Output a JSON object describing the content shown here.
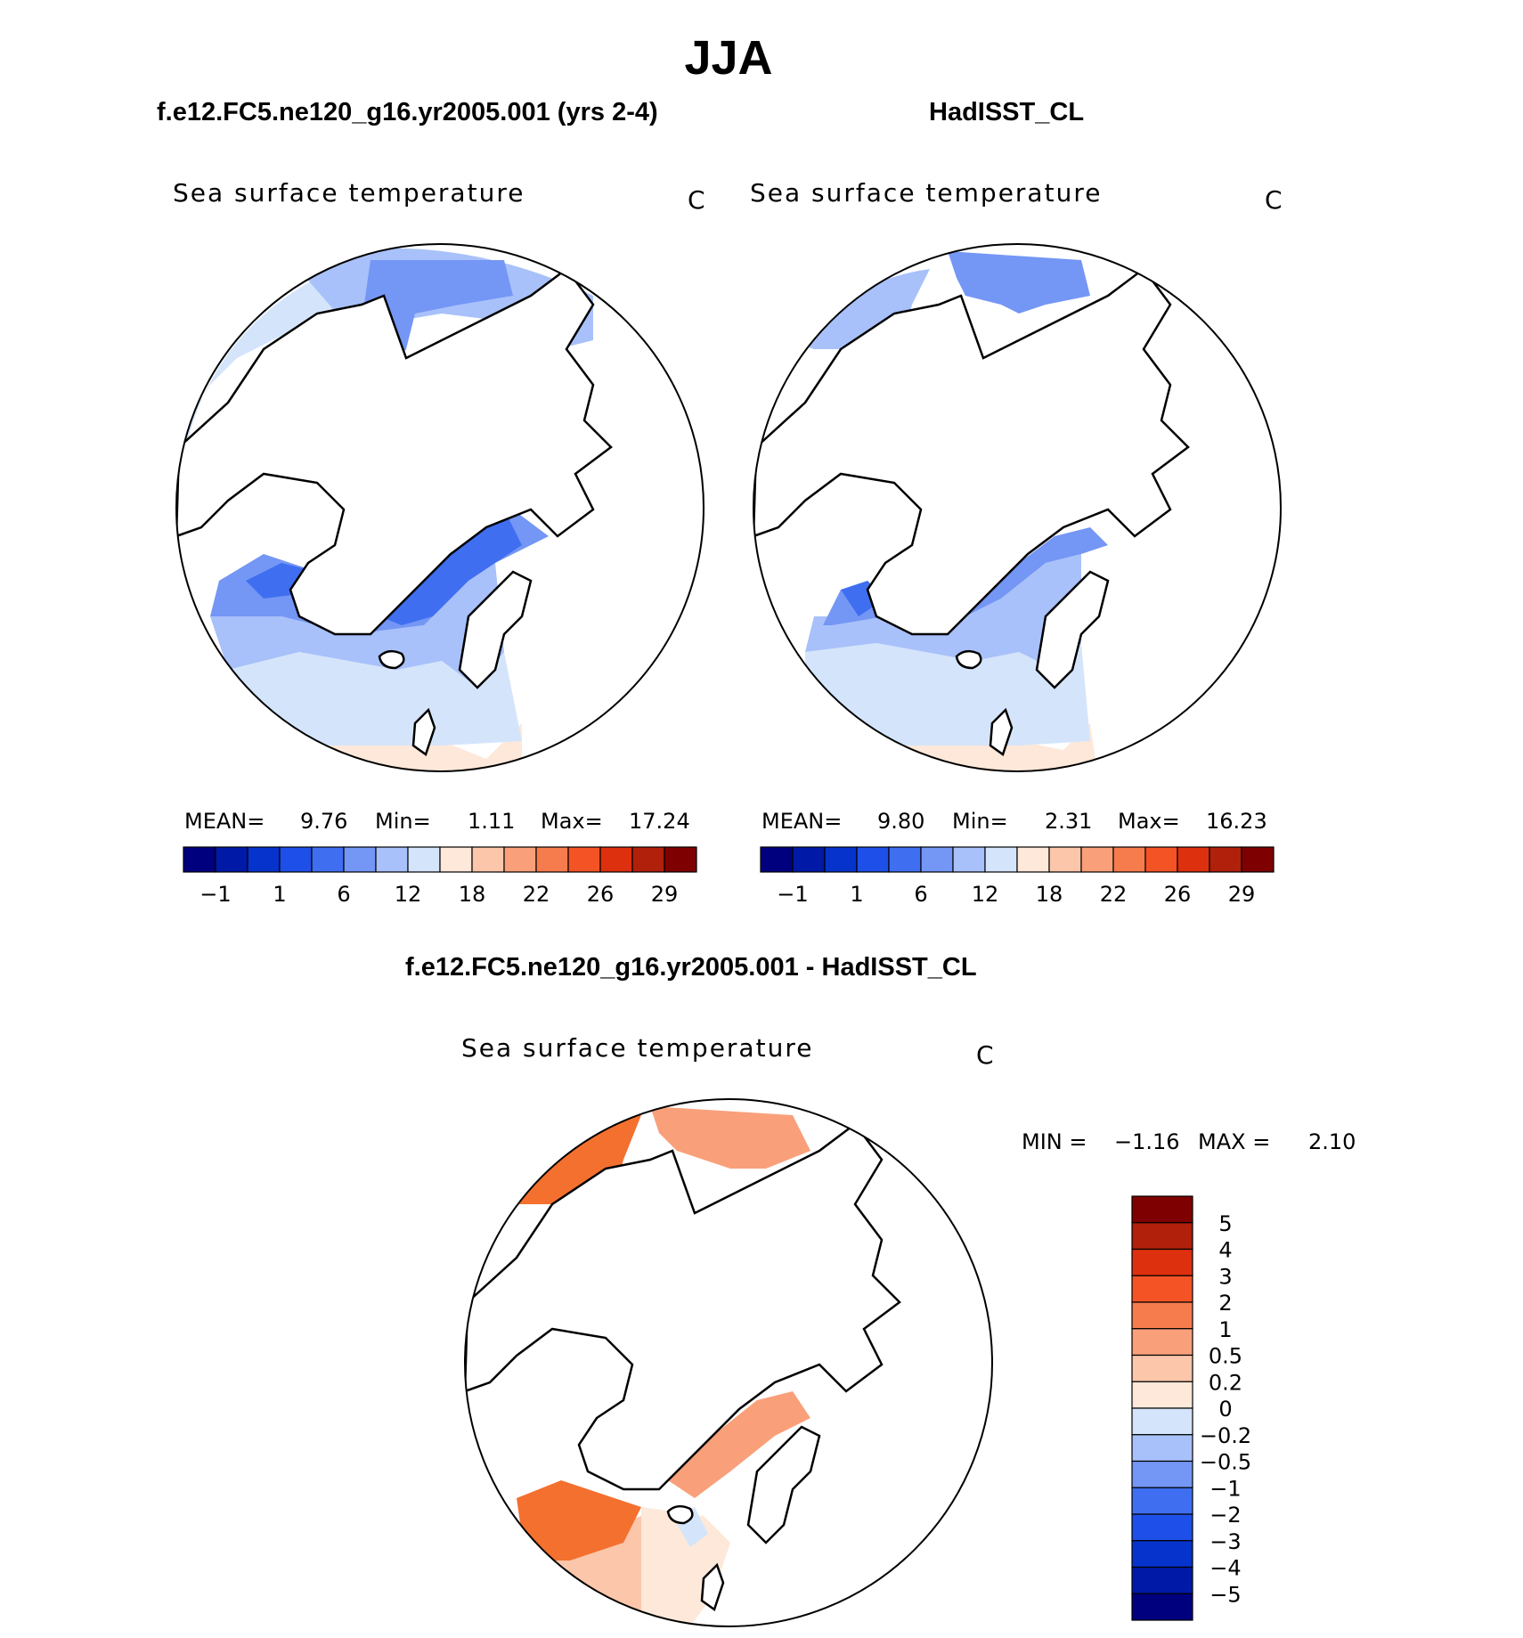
{
  "figure": {
    "season": "JJA",
    "model_title": "f.e12.FC5.ne120_g16.yr2005.001 (yrs 2-4)",
    "obs_title": "HadISST_CL",
    "diff_title": "f.e12.FC5.ne120_g16.yr2005.001 - HadISST_CL"
  },
  "panels": {
    "model": {
      "variable": "Sea surface temperature",
      "units": "C",
      "stats": {
        "mean_label": "MEAN=",
        "mean": "9.76",
        "min_label": "Min=",
        "min": "1.11",
        "max_label": "Max=",
        "max": "17.24"
      }
    },
    "obs": {
      "variable": "Sea surface temperature",
      "units": "C",
      "stats": {
        "mean_label": "MEAN=",
        "mean": "9.80",
        "min_label": "Min=",
        "min": "2.31",
        "max_label": "Max=",
        "max": "16.23"
      }
    },
    "diff": {
      "variable": "Sea surface temperature",
      "units": "C",
      "stats": {
        "min_label": "MIN =",
        "min": "−1.16",
        "max_label": "MAX =",
        "max": "2.10"
      }
    }
  },
  "colorbar_abs": {
    "tick_labels": [
      "−1",
      "1",
      "6",
      "12",
      "18",
      "22",
      "26",
      "29"
    ],
    "colors": [
      "#00007f",
      "#0019a6",
      "#0533cc",
      "#1e4fe8",
      "#3f6ff0",
      "#7496f5",
      "#a9c1fa",
      "#d4e5fb",
      "#fde8d9",
      "#fcc6ab",
      "#f9a07a",
      "#f77c4d",
      "#f45325",
      "#dd300f",
      "#b0200a",
      "#7f0000"
    ]
  },
  "colorbar_diff": {
    "tick_labels": [
      "5",
      "4",
      "3",
      "2",
      "1",
      "0.5",
      "0.2",
      "0",
      "−0.2",
      "−0.5",
      "−1",
      "−2",
      "−3",
      "−4",
      "−5"
    ],
    "colors": [
      "#7f0000",
      "#b0200a",
      "#dd300f",
      "#f45325",
      "#f77c4d",
      "#f9a07a",
      "#fcc6ab",
      "#fde8d9",
      "#d4e5fb",
      "#a9c1fa",
      "#7496f5",
      "#3f6ff0",
      "#1e4fe8",
      "#0533cc",
      "#0019a6",
      "#00007f"
    ]
  },
  "map_colors": {
    "warm_dark": "#f4702f",
    "warm_mid": "#f9a07a",
    "warm_light": "#fcc6ab",
    "warm_pale": "#fde8d9",
    "cool_pale": "#d4e5fb",
    "cool_light": "#a9c1fa",
    "cool_mid": "#7496f5",
    "cool_dark": "#3f6ff0"
  }
}
